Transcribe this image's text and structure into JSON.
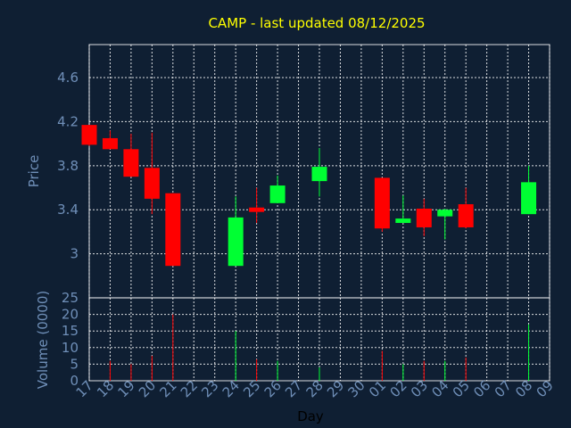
{
  "chart_data": {
    "type": "candlestick",
    "title": "CAMP - last updated 08/12/2025",
    "xlabel": "Day",
    "ylabel": "Price",
    "volume_label": "Volume (0000)",
    "x_ticks": [
      "17",
      "18",
      "19",
      "20",
      "21",
      "22",
      "23",
      "24",
      "25",
      "26",
      "27",
      "28",
      "29",
      "30",
      "01",
      "02",
      "03",
      "04",
      "05",
      "06",
      "07",
      "08",
      "09"
    ],
    "price_ticks": [
      3,
      3.4,
      3.8,
      4.2,
      4.6
    ],
    "price_tick_labels": [
      "3",
      "3.4",
      "3.8",
      "4.2",
      "4.6"
    ],
    "price_ylim": [
      2.6,
      4.9
    ],
    "volume_ticks": [
      0,
      5,
      10,
      15,
      20,
      25
    ],
    "volume_ylim": [
      0,
      25
    ],
    "grid": true,
    "colors": {
      "background": "#0f1f33",
      "up": "#00ff33",
      "down": "#ff0000",
      "title": "#ffff00",
      "axis_label": "#6f8fb8",
      "grid": "#ffffff"
    },
    "candles": [
      {
        "day": "17",
        "open": 4.17,
        "high": 4.17,
        "low": 3.98,
        "close": 3.99,
        "volume": 0
      },
      {
        "day": "18",
        "open": 4.05,
        "high": 4.12,
        "low": 3.95,
        "close": 3.95,
        "volume": 6
      },
      {
        "day": "19",
        "open": 3.95,
        "high": 4.09,
        "low": 3.7,
        "close": 3.7,
        "volume": 5
      },
      {
        "day": "20",
        "open": 3.78,
        "high": 4.1,
        "low": 3.36,
        "close": 3.5,
        "volume": 7.5
      },
      {
        "day": "21",
        "open": 3.55,
        "high": 3.55,
        "low": 2.89,
        "close": 2.89,
        "volume": 20
      },
      {
        "day": "24",
        "open": 2.89,
        "high": 3.52,
        "low": 2.89,
        "close": 3.33,
        "volume": 15
      },
      {
        "day": "25",
        "open": 3.42,
        "high": 3.6,
        "low": 3.28,
        "close": 3.38,
        "volume": 6.5
      },
      {
        "day": "26",
        "open": 3.46,
        "high": 3.71,
        "low": 3.46,
        "close": 3.62,
        "volume": 6
      },
      {
        "day": "28",
        "open": 3.66,
        "high": 3.96,
        "low": 3.52,
        "close": 3.79,
        "volume": 4
      },
      {
        "day": "01",
        "open": 3.69,
        "high": 3.69,
        "low": 3.2,
        "close": 3.23,
        "volume": 9
      },
      {
        "day": "02",
        "open": 3.28,
        "high": 3.53,
        "low": 3.28,
        "close": 3.32,
        "volume": 5
      },
      {
        "day": "03",
        "open": 3.41,
        "high": 3.5,
        "low": 3.16,
        "close": 3.24,
        "volume": 6
      },
      {
        "day": "04",
        "open": 3.34,
        "high": 3.41,
        "low": 3.13,
        "close": 3.4,
        "volume": 6
      },
      {
        "day": "05",
        "open": 3.45,
        "high": 3.6,
        "low": 3.23,
        "close": 3.24,
        "volume": 7
      },
      {
        "day": "08",
        "open": 3.36,
        "high": 3.8,
        "low": 3.36,
        "close": 3.65,
        "volume": 17
      }
    ]
  }
}
